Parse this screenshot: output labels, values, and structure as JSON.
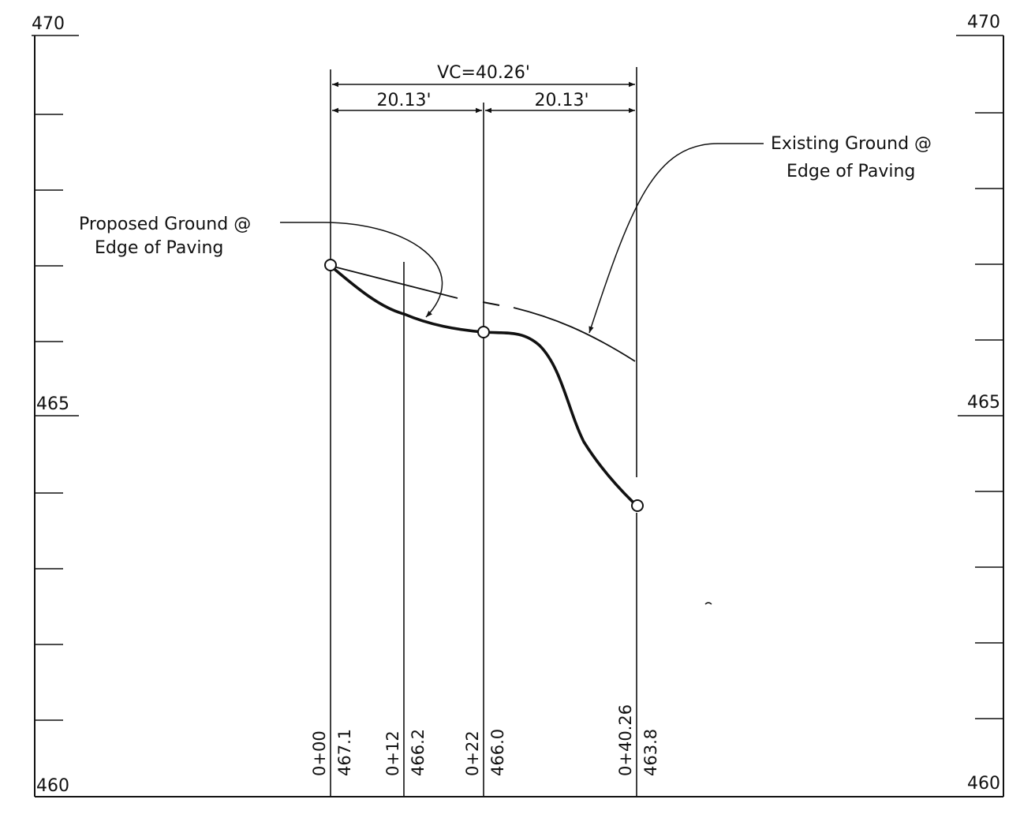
{
  "axis": {
    "left_labels": [
      "470",
      "465",
      "460"
    ],
    "right_labels": [
      "470",
      "465",
      "460"
    ]
  },
  "dimensions": {
    "vc": "VC=40.26'",
    "half_left": "20.13'",
    "half_right": "20.13'"
  },
  "callouts": {
    "proposed_line1": "Proposed Ground @",
    "proposed_line2": "Edge of Paving",
    "existing_line1": "Existing Ground @",
    "existing_line2": "Edge of Paving"
  },
  "stations": [
    {
      "station": "0+00",
      "elevation": "467.1"
    },
    {
      "station": "0+12",
      "elevation": "466.2"
    },
    {
      "station": "0+22",
      "elevation": "466.0"
    },
    {
      "station": "0+40.26",
      "elevation": "463.8"
    }
  ],
  "colors": {
    "ink": "#111111",
    "paper": "#ffffff"
  }
}
